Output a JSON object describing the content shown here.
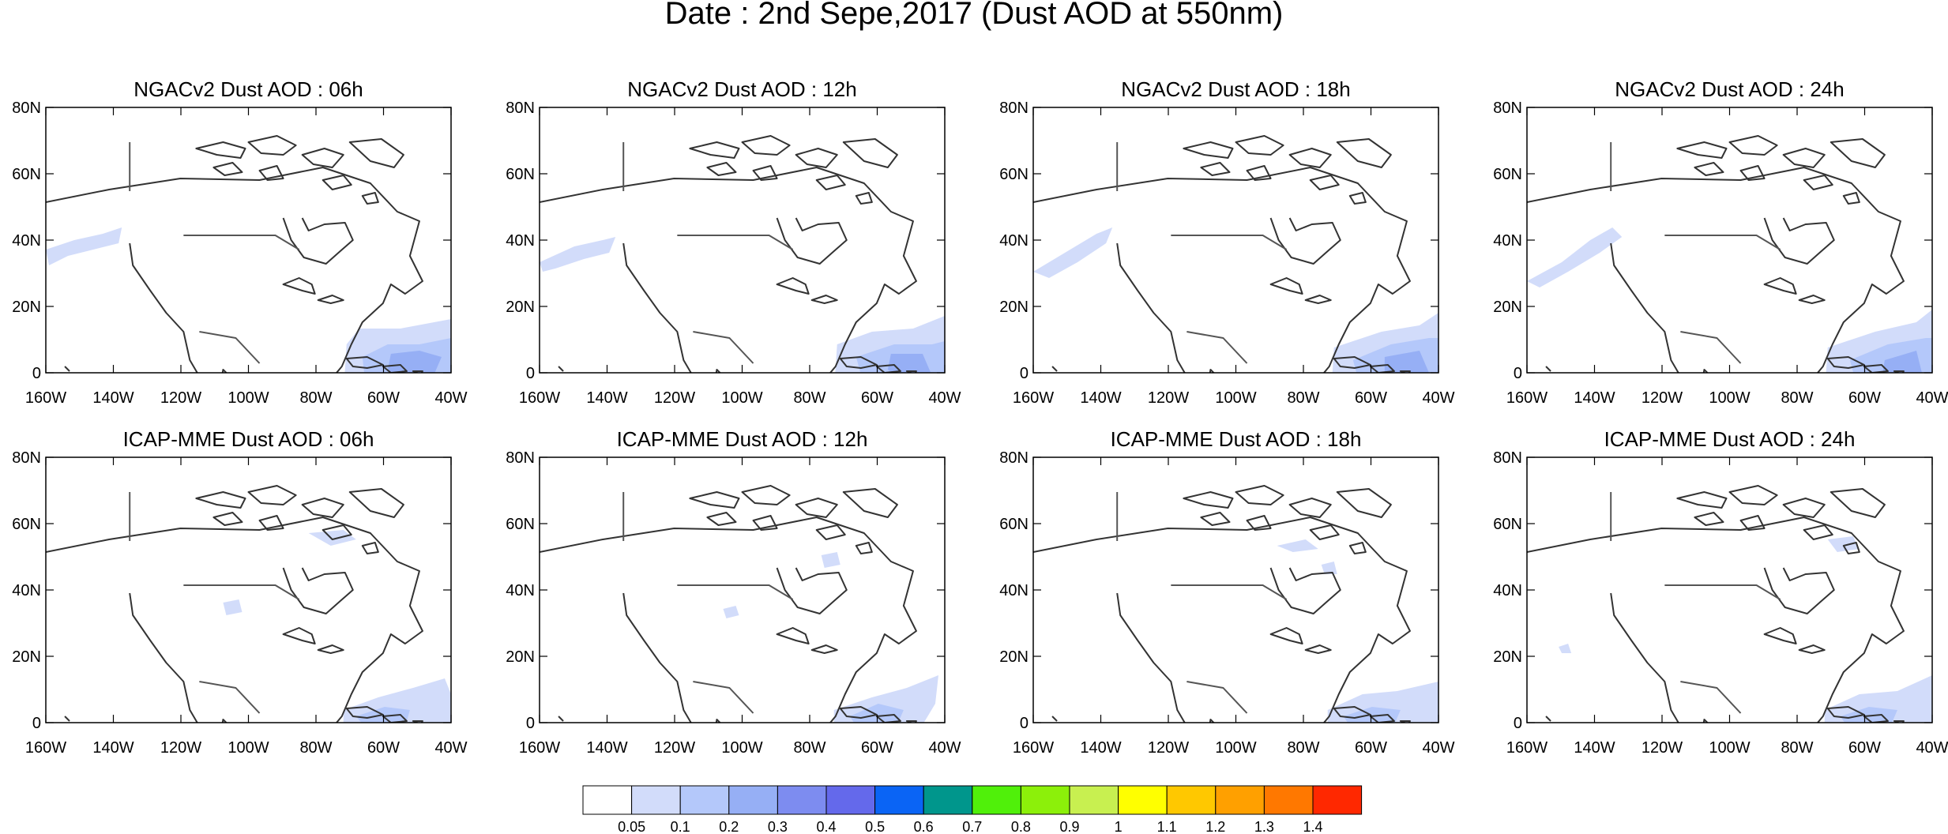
{
  "figure_title": "Date : 2nd Sepe,2017 (Dust AOD at 550nm)",
  "axes": {
    "lon_range": [
      -160,
      -40
    ],
    "lat_range": [
      0,
      80
    ],
    "x_ticks": [
      {
        "value": -160,
        "label": "160W"
      },
      {
        "value": -140,
        "label": "140W"
      },
      {
        "value": -120,
        "label": "120W"
      },
      {
        "value": -100,
        "label": "100W"
      },
      {
        "value": -80,
        "label": "80W"
      },
      {
        "value": -60,
        "label": "60W"
      },
      {
        "value": -40,
        "label": "40W"
      }
    ],
    "y_ticks": [
      {
        "value": 0,
        "label": "0"
      },
      {
        "value": 20,
        "label": "20N"
      },
      {
        "value": 40,
        "label": "40N"
      },
      {
        "value": 60,
        "label": "60N"
      },
      {
        "value": 80,
        "label": "80N"
      }
    ]
  },
  "panels": [
    {
      "title": "NGACv2 Dust AOD : 06h",
      "model": "NGACv2",
      "hour": "06h"
    },
    {
      "title": "NGACv2 Dust AOD : 12h",
      "model": "NGACv2",
      "hour": "12h"
    },
    {
      "title": "NGACv2 Dust AOD : 18h",
      "model": "NGACv2",
      "hour": "18h"
    },
    {
      "title": "NGACv2 Dust AOD : 24h",
      "model": "NGACv2",
      "hour": "24h"
    },
    {
      "title": "ICAP-MME Dust AOD : 06h",
      "model": "ICAP-MME",
      "hour": "06h"
    },
    {
      "title": "ICAP-MME Dust AOD : 12h",
      "model": "ICAP-MME",
      "hour": "12h"
    },
    {
      "title": "ICAP-MME Dust AOD : 18h",
      "model": "ICAP-MME",
      "hour": "18h"
    },
    {
      "title": "ICAP-MME Dust AOD : 24h",
      "model": "ICAP-MME",
      "hour": "24h"
    }
  ],
  "colorbar": {
    "colors": [
      "#ffffff",
      "#d2dcfa",
      "#b4c8fa",
      "#96aff5",
      "#7d8cf0",
      "#6469eb",
      "#0a64f5",
      "#00968c",
      "#50f00a",
      "#8cf00a",
      "#c8f050",
      "#ffff00",
      "#ffc800",
      "#ffa000",
      "#ff7800",
      "#ff2800"
    ],
    "labels": [
      "0.05",
      "0.1",
      "0.2",
      "0.3",
      "0.4",
      "0.5",
      "0.6",
      "0.7",
      "0.8",
      "0.9",
      "1",
      "1.1",
      "1.2",
      "1.3",
      "1.4"
    ]
  }
}
